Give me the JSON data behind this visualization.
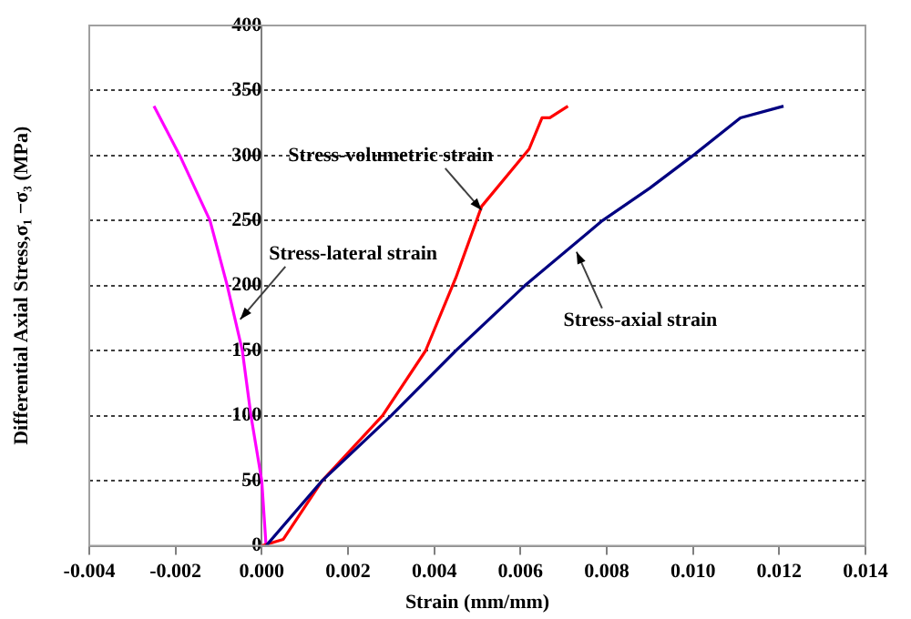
{
  "chart_data": {
    "type": "line",
    "xlabel": "Strain (mm/mm)",
    "ylabel": "Differential Axial Stress,σ₁ −σ₃ (MPa)",
    "xlim": [
      -0.004,
      0.014
    ],
    "xticks": [
      {
        "value": -0.004,
        "label": "-0.004"
      },
      {
        "value": -0.002,
        "label": "-0.002"
      },
      {
        "value": 0,
        "label": "0.000"
      },
      {
        "value": 0.002,
        "label": "0.002"
      },
      {
        "value": 0.004,
        "label": "0.004"
      },
      {
        "value": 0.006,
        "label": "0.006"
      },
      {
        "value": 0.008,
        "label": "0.008"
      },
      {
        "value": 0.01,
        "label": "0.010"
      },
      {
        "value": 0.012,
        "label": "0.012"
      },
      {
        "value": 0.014,
        "label": "0.014"
      }
    ],
    "ylim": [
      0,
      400
    ],
    "yticks": [
      0,
      50,
      100,
      150,
      200,
      250,
      300,
      350,
      400
    ],
    "grid": "y",
    "legend": false,
    "marker": "none",
    "line_style": "solid",
    "series": [
      {
        "color": "#000080",
        "x": [
          0.0001,
          0.0014,
          0.003,
          0.0045,
          0.0061,
          0.0079,
          0.009,
          0.01,
          0.0111,
          0.0121
        ],
        "values": [
          0,
          50,
          100,
          150,
          200,
          250,
          275,
          300,
          329,
          338
        ]
      },
      {
        "color": "#ff0000",
        "x": [
          0,
          0.0005,
          0.0009,
          0.0014,
          0.0028,
          0.0038,
          0.0045,
          0.0051,
          0.0062,
          0.0065,
          0.00668,
          0.0071
        ],
        "values": [
          0,
          5,
          25,
          50,
          100,
          150,
          206,
          261,
          305,
          329,
          329,
          338
        ]
      },
      {
        "color": "#ff00ff",
        "x": [
          0.0001,
          0,
          -0.00025,
          -0.00045,
          -0.0008,
          -0.0012,
          -0.0019,
          -0.0025
        ],
        "values": [
          0,
          50,
          100,
          150,
          200,
          250,
          300,
          338
        ]
      }
    ],
    "annotations": [
      {
        "text": "Stress-volumetric strain",
        "x": 0.0051,
        "y": 258
      },
      {
        "text": "Stress-lateral strain",
        "x": -0.0005,
        "y": 174
      },
      {
        "text": "Stress-axial strain",
        "x": 0.0073,
        "y": 226
      }
    ]
  }
}
